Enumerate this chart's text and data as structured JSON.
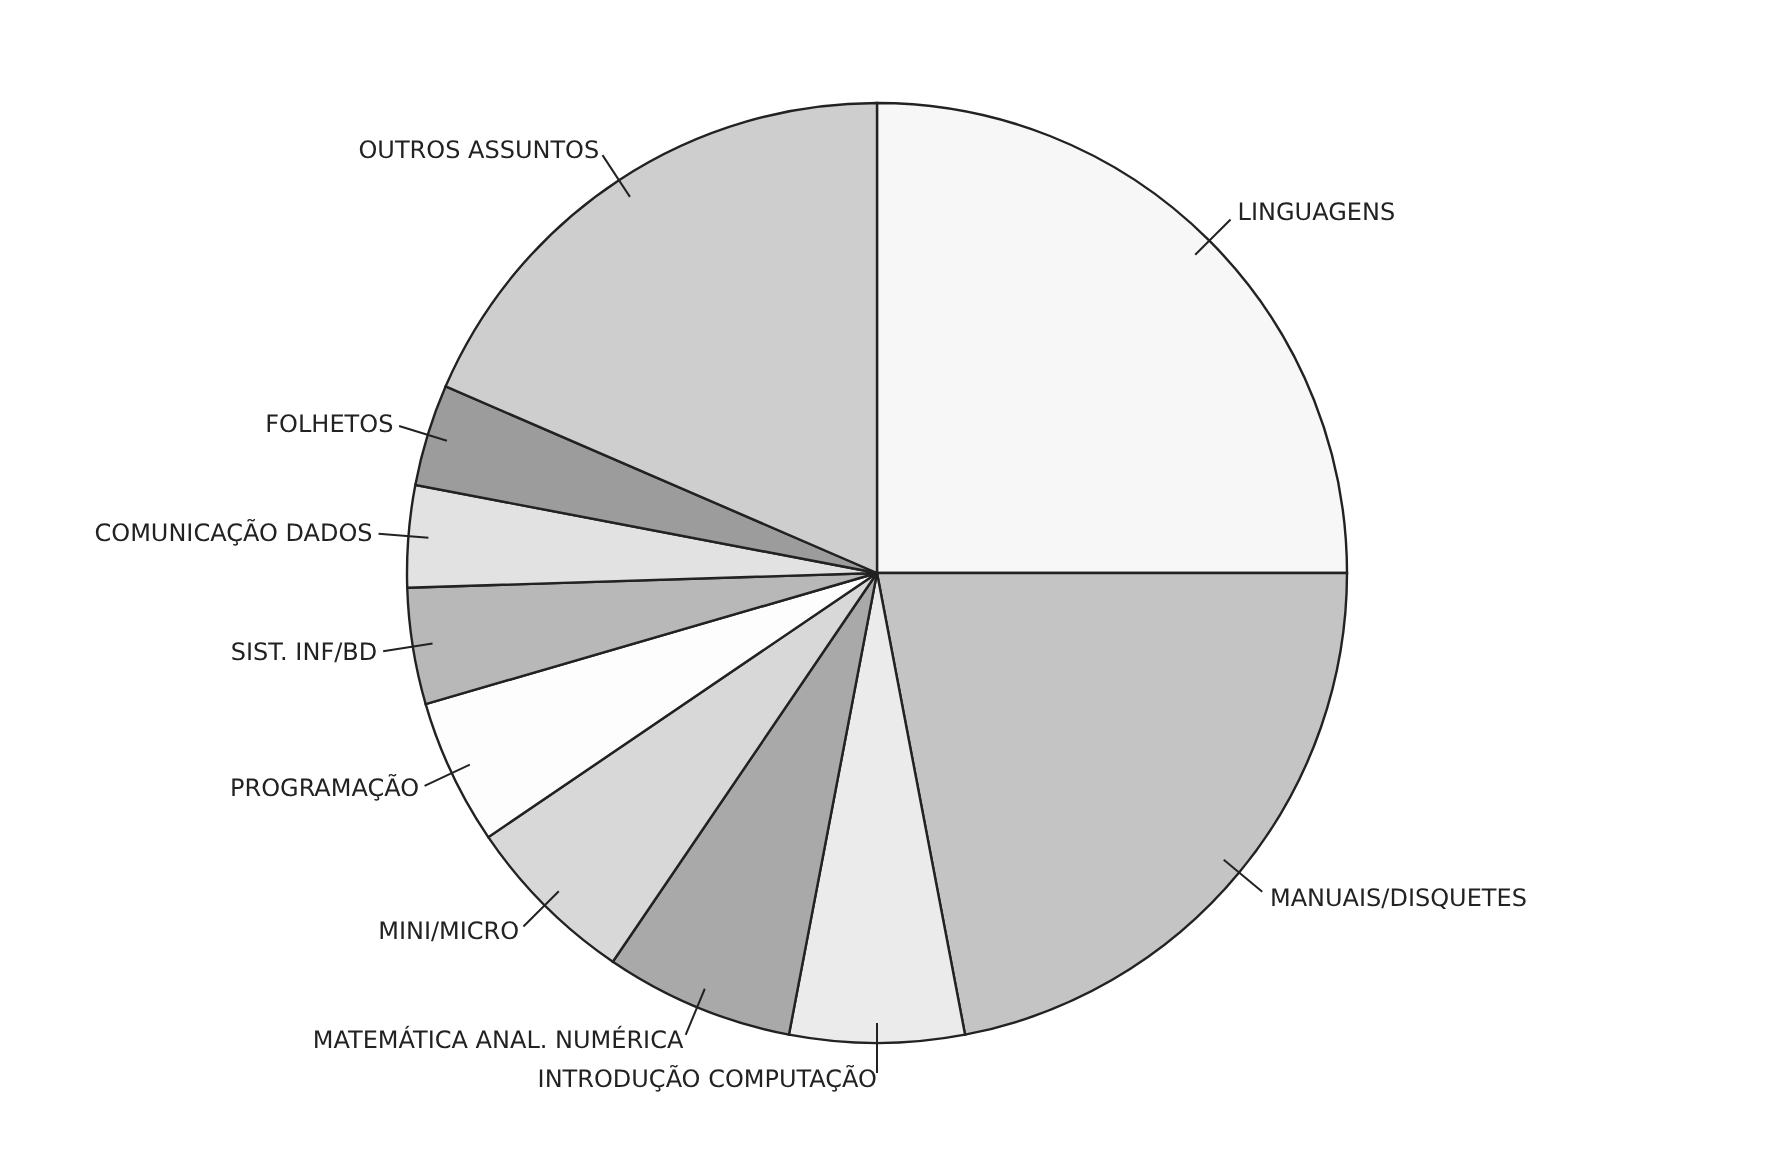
{
  "chart_data": {
    "type": "pie",
    "categories": [
      "LINGUAGENS",
      "MANUAIS/DISQUETES",
      "INTRODUÇÃO COMPUTAÇÃO",
      "MATEMÁTICA ANAL. NUMÉRICA",
      "MINI/MICRO",
      "PROGRAMAÇÃO",
      "SIST. INF/BD",
      "COMUNICAÇÃO DADOS",
      "FOLHETOS",
      "OUTROS ASSUNTOS"
    ],
    "values": [
      25,
      22,
      6,
      6.5,
      6,
      5,
      4,
      3.5,
      3.5,
      18.5
    ],
    "colors": [
      "#f7f7f7",
      "#c4c4c4",
      "#ebebeb",
      "#a9a9a9",
      "#d8d8d8",
      "#fdfdfd",
      "#b8b8b8",
      "#e2e2e2",
      "#9c9c9c",
      "#cecece"
    ],
    "legend": false
  }
}
